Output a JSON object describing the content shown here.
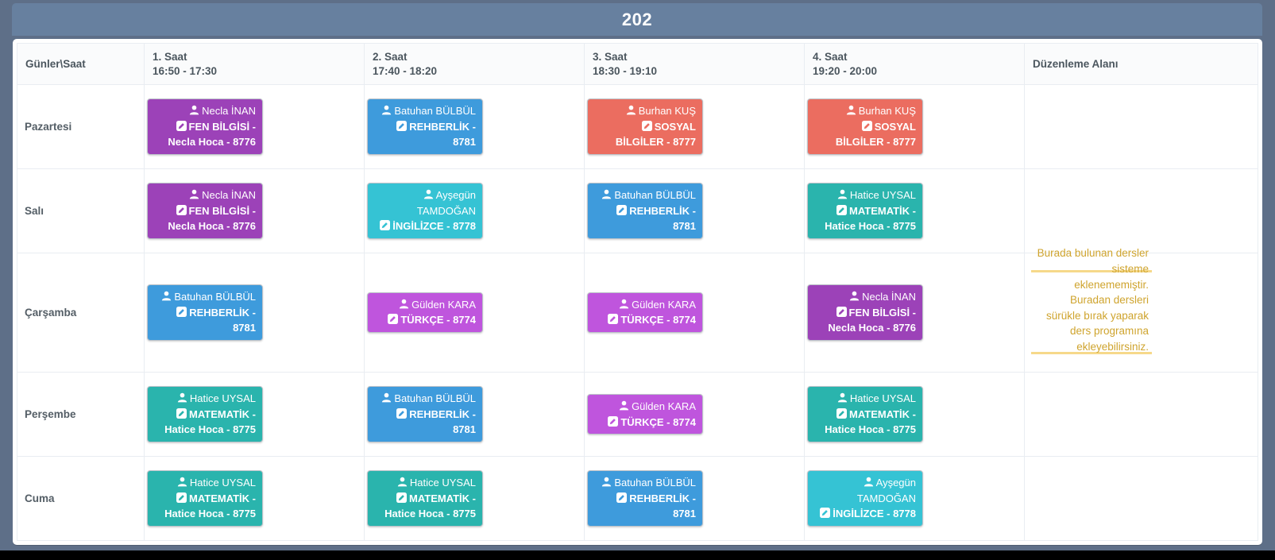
{
  "header": {
    "title": "202"
  },
  "colors": {
    "page_background": "#5e6f88",
    "title_bar": "#67809f",
    "fen_bilgisi": "#9c42b8",
    "rehberlik": "#3e9bdc",
    "sosyal_bilgiler": "#eb6d60",
    "ingilizce": "#35c3d4",
    "matematik": "#2ab4ad",
    "turkce": "#bf55dd",
    "note_text": "#cfa42e",
    "note_border": "#f6d98a"
  },
  "icons": {
    "teacher": "user-icon",
    "lesson": "pencil-square-icon"
  },
  "table": {
    "corner_header": "Günler\\Saat",
    "periods": [
      {
        "label": "1. Saat",
        "time": "16:50 - 17:30"
      },
      {
        "label": "2. Saat",
        "time": "17:40 - 18:20"
      },
      {
        "label": "3. Saat",
        "time": "18:30 - 19:10"
      },
      {
        "label": "4. Saat",
        "time": "19:20 - 20:00"
      }
    ],
    "edit_area_header": "Düzenleme Alanı"
  },
  "days": [
    {
      "name": "Pazartesi",
      "cards": [
        {
          "teacher": "Necla İNAN",
          "lesson": "FEN BİLGİSİ - Necla Hoca - 8776",
          "color": "#9c42b8"
        },
        {
          "teacher": "Batuhan BÜLBÜL",
          "lesson": "REHBERLİK - 8781",
          "color": "#3e9bdc"
        },
        {
          "teacher": "Burhan KUŞ",
          "lesson": "SOSYAL BİLGİLER - 8777",
          "color": "#eb6d60"
        },
        {
          "teacher": "Burhan KUŞ",
          "lesson": "SOSYAL BİLGİLER - 8777",
          "color": "#eb6d60"
        }
      ]
    },
    {
      "name": "Salı",
      "cards": [
        {
          "teacher": "Necla İNAN",
          "lesson": "FEN BİLGİSİ - Necla Hoca - 8776",
          "color": "#9c42b8"
        },
        {
          "teacher": "Ayşegün TAMDOĞAN",
          "lesson": "İNGİLİZCE - 8778",
          "color": "#35c3d4"
        },
        {
          "teacher": "Batuhan BÜLBÜL",
          "lesson": "REHBERLİK - 8781",
          "color": "#3e9bdc"
        },
        {
          "teacher": "Hatice UYSAL",
          "lesson": "MATEMATİK - Hatice Hoca - 8775",
          "color": "#2ab4ad"
        }
      ]
    },
    {
      "name": "Çarşamba",
      "cards": [
        {
          "teacher": "Batuhan BÜLBÜL",
          "lesson": "REHBERLİK - 8781",
          "color": "#3e9bdc"
        },
        {
          "teacher": "Gülden KARA",
          "lesson": "TÜRKÇE - 8774",
          "color": "#bf55dd"
        },
        {
          "teacher": "Gülden KARA",
          "lesson": "TÜRKÇE - 8774",
          "color": "#bf55dd"
        },
        {
          "teacher": "Necla İNAN",
          "lesson": "FEN BİLGİSİ - Necla Hoca - 8776",
          "color": "#9c42b8"
        }
      ]
    },
    {
      "name": "Perşembe",
      "cards": [
        {
          "teacher": "Hatice UYSAL",
          "lesson": "MATEMATİK - Hatice Hoca - 8775",
          "color": "#2ab4ad"
        },
        {
          "teacher": "Batuhan BÜLBÜL",
          "lesson": "REHBERLİK - 8781",
          "color": "#3e9bdc"
        },
        {
          "teacher": "Gülden KARA",
          "lesson": "TÜRKÇE - 8774",
          "color": "#bf55dd"
        },
        {
          "teacher": "Hatice UYSAL",
          "lesson": "MATEMATİK - Hatice Hoca - 8775",
          "color": "#2ab4ad"
        }
      ]
    },
    {
      "name": "Cuma",
      "cards": [
        {
          "teacher": "Hatice UYSAL",
          "lesson": "MATEMATİK - Hatice Hoca - 8775",
          "color": "#2ab4ad"
        },
        {
          "teacher": "Hatice UYSAL",
          "lesson": "MATEMATİK - Hatice Hoca - 8775",
          "color": "#2ab4ad"
        },
        {
          "teacher": "Batuhan BÜLBÜL",
          "lesson": "REHBERLİK - 8781",
          "color": "#3e9bdc"
        },
        {
          "teacher": "Ayşegün TAMDOĞAN",
          "lesson": "İNGİLİZCE - 8778",
          "color": "#35c3d4"
        }
      ]
    }
  ],
  "edit_area_note": {
    "row": "Çarşamba",
    "text": "Burada bulunan dersler sisteme eklenememiştir. Buradan dersleri sürükle bırak yaparak ders programına ekleyebilirsiniz."
  }
}
